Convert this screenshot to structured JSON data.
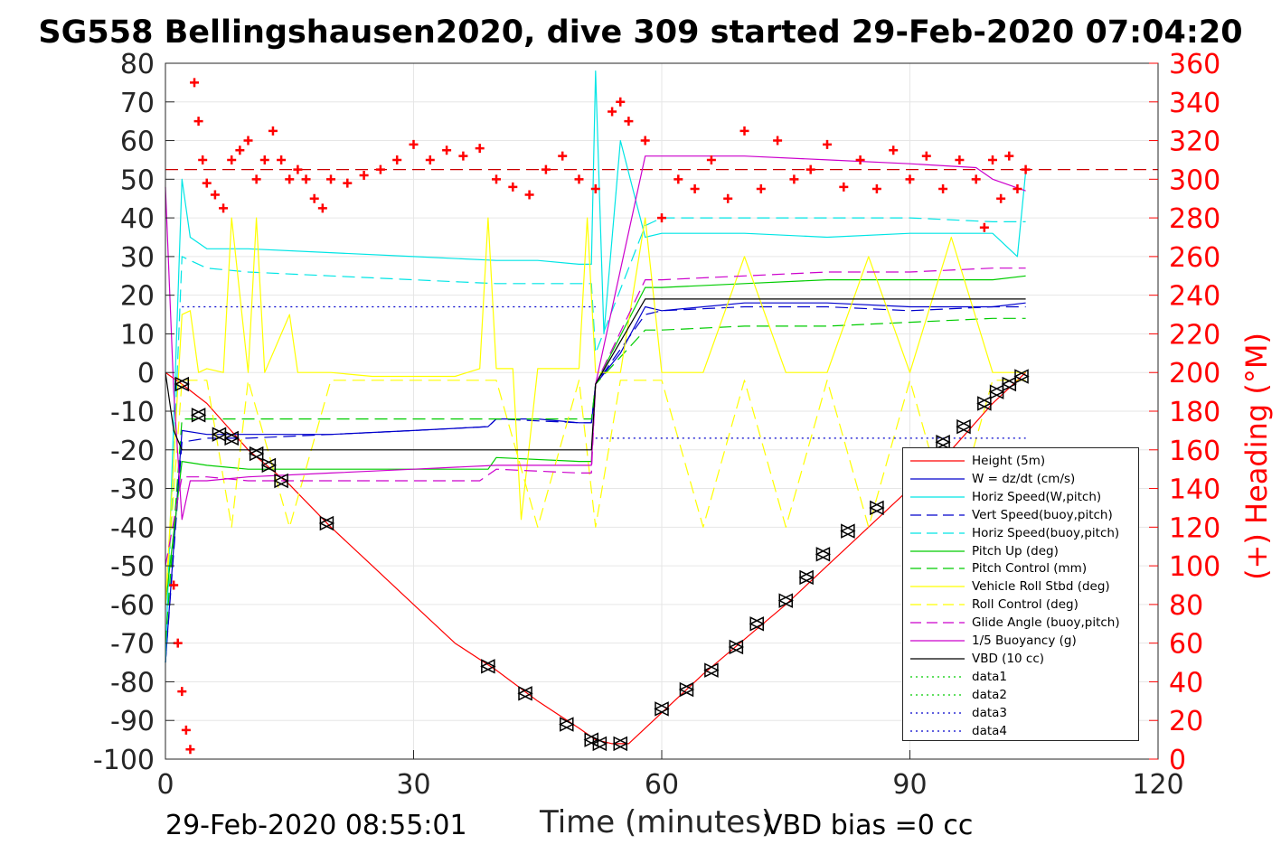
{
  "title": "SG558 Bellingshausen2020, dive 309 started 29-Feb-2020 07:04:20",
  "footer_left": "29-Feb-2020 08:55:01",
  "footer_right": "VBD bias =0 cc",
  "chart_data": {
    "type": "line",
    "title": "SG558 Bellingshausen2020, dive 309 started 29-Feb-2020 07:04:20",
    "xlabel": "Time (minutes)",
    "ylabel_left": "",
    "ylabel_right": "(+) Heading (°M)",
    "xlim": [
      0,
      120
    ],
    "ylim_left": [
      -100,
      80
    ],
    "ylim_right": [
      0,
      360
    ],
    "x_ticks": [
      0,
      30,
      60,
      90,
      120
    ],
    "x_tick_labels": [
      "0",
      "30",
      "60",
      "90",
      "120"
    ],
    "y_ticks_left": [
      80,
      70,
      60,
      50,
      40,
      30,
      20,
      10,
      0,
      -10,
      -20,
      -30,
      -40,
      -50,
      -60,
      -70,
      -80,
      -90,
      -100
    ],
    "y_tick_labels_left": [
      "80",
      "70",
      "60",
      "50",
      "40",
      "30",
      "20",
      "10",
      "0",
      "-10",
      "-20",
      "-30",
      "-40",
      "-50",
      "-60",
      "-70",
      "-80",
      "-90",
      "-100"
    ],
    "y_ticks_right": [
      360,
      340,
      320,
      300,
      280,
      260,
      240,
      220,
      200,
      180,
      160,
      140,
      120,
      100,
      80,
      60,
      40,
      20,
      0
    ],
    "y_tick_labels_right": [
      "360",
      "340",
      "320",
      "300",
      "280",
      "260",
      "240",
      "220",
      "200",
      "180",
      "160",
      "140",
      "120",
      "100",
      "80",
      "60",
      "40",
      "20",
      "0"
    ],
    "grid": true,
    "legend_position": "bottom-right",
    "legend": [
      {
        "label": "Height (5m)",
        "color": "#ff0000",
        "style": "solid"
      },
      {
        "label": "W = dz/dt (cm/s)",
        "color": "#0000cc",
        "style": "solid"
      },
      {
        "label": "Horiz Speed(W,pitch)",
        "color": "#00e5e5",
        "style": "solid"
      },
      {
        "label": "Vert Speed(buoy,pitch)",
        "color": "#0000cc",
        "style": "dashed"
      },
      {
        "label": "Horiz Speed(buoy,pitch)",
        "color": "#00e5e5",
        "style": "dashed"
      },
      {
        "label": "Pitch Up (deg)",
        "color": "#00cc00",
        "style": "solid"
      },
      {
        "label": "Pitch Control (mm)",
        "color": "#00cc00",
        "style": "dashed"
      },
      {
        "label": "Vehicle Roll Stbd (deg)",
        "color": "#ffff00",
        "style": "solid"
      },
      {
        "label": "Roll Control (deg)",
        "color": "#ffff00",
        "style": "dashed"
      },
      {
        "label": "Glide Angle (buoy,pitch)",
        "color": "#cc00cc",
        "style": "dashed"
      },
      {
        "label": "1/5 Buoyancy (g)",
        "color": "#cc00cc",
        "style": "solid"
      },
      {
        "label": "VBD (10 cc)",
        "color": "#000000",
        "style": "solid"
      },
      {
        "label": "data1",
        "color": "#00cc00",
        "style": "dotted"
      },
      {
        "label": "data2",
        "color": "#00cc00",
        "style": "dotted"
      },
      {
        "label": "data3",
        "color": "#0000cc",
        "style": "dotted"
      },
      {
        "label": "data4",
        "color": "#0000cc",
        "style": "dotted"
      }
    ],
    "series": [
      {
        "name": "Height (5m)",
        "axis": "left",
        "color": "#ff0000",
        "style": "solid",
        "x": [
          0,
          2,
          5,
          10,
          15,
          20,
          25,
          30,
          35,
          40,
          45,
          50,
          52,
          54,
          56,
          58,
          60,
          65,
          70,
          75,
          80,
          85,
          90,
          95,
          100,
          104
        ],
        "y": [
          0,
          -3,
          -8,
          -20,
          -29,
          -40,
          -50,
          -60,
          -70,
          -77,
          -85,
          -92,
          -95,
          -96,
          -96,
          -92,
          -88,
          -78,
          -69,
          -60,
          -50,
          -40,
          -30,
          -20,
          -8,
          0
        ]
      },
      {
        "name": "W = dz/dt (cm/s)",
        "axis": "left",
        "color": "#0000cc",
        "style": "solid",
        "x": [
          0,
          2,
          5,
          10,
          20,
          30,
          39,
          40,
          45,
          50,
          51.5,
          52,
          55,
          58,
          60,
          70,
          80,
          90,
          100,
          104
        ],
        "y": [
          -75,
          -15,
          -16,
          -16,
          -16,
          -15,
          -14,
          -12,
          -12,
          -13,
          -13,
          -3,
          5,
          17,
          16,
          18,
          18,
          17,
          17,
          18
        ]
      },
      {
        "name": "Horiz Speed(W,pitch)",
        "axis": "left",
        "color": "#00e5e5",
        "style": "solid",
        "x": [
          0,
          2,
          3,
          5,
          10,
          20,
          30,
          40,
          45,
          50,
          51.5,
          52,
          53,
          55,
          58,
          60,
          70,
          80,
          90,
          100,
          103,
          104
        ],
        "y": [
          -75,
          50,
          35,
          32,
          32,
          31,
          30,
          29,
          29,
          28,
          28,
          78,
          10,
          60,
          35,
          36,
          36,
          35,
          36,
          36,
          30,
          52
        ]
      },
      {
        "name": "Vert Speed(buoy,pitch)",
        "axis": "left",
        "color": "#0000cc",
        "style": "dashed",
        "x": [
          0,
          2,
          5,
          10,
          20,
          30,
          39,
          40,
          50,
          51.5,
          52,
          58,
          60,
          70,
          80,
          90,
          100,
          104
        ],
        "y": [
          -75,
          -18,
          -17,
          -17,
          -16,
          -15,
          -14,
          -12,
          -13,
          -13,
          -3,
          15,
          16,
          17,
          17,
          16,
          17,
          17
        ]
      },
      {
        "name": "Horiz Speed(buoy,pitch)",
        "axis": "left",
        "color": "#00e5e5",
        "style": "dashed",
        "x": [
          0,
          2,
          5,
          10,
          20,
          30,
          40,
          50,
          51.5,
          52,
          58,
          60,
          70,
          80,
          90,
          100,
          104
        ],
        "y": [
          -75,
          30,
          27,
          26,
          25,
          24,
          23,
          23,
          23,
          5,
          38,
          40,
          40,
          40,
          40,
          39,
          39
        ]
      },
      {
        "name": "Pitch Up (deg)",
        "axis": "left",
        "color": "#00cc00",
        "style": "solid",
        "x": [
          0,
          2,
          5,
          10,
          20,
          30,
          39,
          40,
          50,
          51.5,
          52,
          58,
          60,
          70,
          80,
          90,
          100,
          104
        ],
        "y": [
          -60,
          -23,
          -24,
          -25,
          -25,
          -25,
          -25,
          -22,
          -23,
          -23,
          -3,
          22,
          22,
          23,
          24,
          24,
          24,
          25
        ]
      },
      {
        "name": "Pitch Control (mm)",
        "axis": "left",
        "color": "#00cc00",
        "style": "dashed",
        "x": [
          0,
          2,
          5,
          10,
          20,
          30,
          40,
          50,
          51.5,
          52,
          58,
          60,
          70,
          80,
          90,
          100,
          104
        ],
        "y": [
          -70,
          -12,
          -12,
          -12,
          -12,
          -12,
          -12,
          -12,
          -12,
          -3,
          11,
          11,
          12,
          12,
          13,
          14,
          14
        ]
      },
      {
        "name": "Vehicle Roll Stbd (deg)",
        "axis": "left",
        "color": "#ffff00",
        "style": "solid",
        "x": [
          0,
          2,
          3,
          4,
          5,
          7,
          8,
          10,
          11,
          12,
          15,
          16,
          20,
          25,
          30,
          35,
          38,
          39,
          40,
          42,
          43,
          45,
          50,
          51,
          52,
          55,
          58,
          60,
          65,
          70,
          75,
          80,
          85,
          90,
          95,
          100,
          104
        ],
        "y": [
          -60,
          15,
          16,
          0,
          1,
          0,
          40,
          0,
          40,
          0,
          15,
          0,
          0,
          -1,
          -1,
          -1,
          1,
          40,
          1,
          1,
          -38,
          1,
          1,
          40,
          0,
          0,
          40,
          0,
          0,
          30,
          0,
          0,
          30,
          0,
          35,
          0,
          0
        ]
      },
      {
        "name": "Roll Control (deg)",
        "axis": "left",
        "color": "#ffff00",
        "style": "dashed",
        "x": [
          0,
          2,
          5,
          8,
          10,
          15,
          20,
          25,
          30,
          35,
          40,
          45,
          50,
          52,
          55,
          60,
          65,
          70,
          75,
          80,
          85,
          90,
          95,
          100,
          104
        ],
        "y": [
          -60,
          -2,
          -2,
          -40,
          -2,
          -40,
          -2,
          -2,
          -2,
          -2,
          -2,
          -40,
          -2,
          -40,
          -2,
          -2,
          -40,
          -2,
          -40,
          -2,
          -40,
          -2,
          -40,
          -2,
          -2
        ]
      },
      {
        "name": "Glide Angle (buoy,pitch)",
        "axis": "left",
        "color": "#cc00cc",
        "style": "dashed",
        "x": [
          0,
          2,
          5,
          10,
          20,
          30,
          38,
          40,
          50,
          51.5,
          52,
          58,
          60,
          70,
          80,
          90,
          100,
          104
        ],
        "y": [
          -50,
          -27,
          -27,
          -28,
          -28,
          -28,
          -28,
          -25,
          -26,
          -26,
          -3,
          24,
          24,
          25,
          26,
          26,
          27,
          27
        ]
      },
      {
        "name": "1/5 Buoyancy (g)",
        "axis": "left",
        "color": "#cc00cc",
        "style": "solid",
        "x": [
          0,
          1,
          2,
          3,
          5,
          10,
          20,
          30,
          40,
          50,
          51.5,
          52,
          58,
          60,
          70,
          80,
          90,
          98,
          100,
          104
        ],
        "y": [
          48,
          -5,
          -38,
          -28,
          -28,
          -27,
          -26,
          -25,
          -24,
          -24,
          -24,
          -3,
          56,
          56,
          56,
          55,
          54,
          53,
          50,
          47
        ]
      },
      {
        "name": "VBD (10 cc)",
        "axis": "left",
        "color": "#000000",
        "style": "solid",
        "x": [
          0,
          1,
          2,
          5,
          10,
          20,
          30,
          40,
          50,
          51.5,
          52,
          58,
          60,
          70,
          80,
          90,
          100,
          104
        ],
        "y": [
          0,
          -15,
          -20,
          -20,
          -20,
          -20,
          -20,
          -20,
          -20,
          -20,
          -3,
          19,
          19,
          19,
          19,
          19,
          19,
          19
        ]
      },
      {
        "name": "data1",
        "axis": "left",
        "color": "#0000cc",
        "style": "dotted",
        "x": [
          2,
          52
        ],
        "y": [
          17,
          17
        ]
      },
      {
        "name": "data2",
        "axis": "left",
        "color": "#0000cc",
        "style": "dotted",
        "x": [
          52,
          104
        ],
        "y": [
          -17,
          -17
        ]
      }
    ],
    "heading_series": {
      "name": "Heading",
      "axis": "right",
      "color": "#ff0000",
      "marker": "+",
      "x": [
        1,
        1.5,
        2,
        2.5,
        3,
        3.5,
        4,
        4.5,
        5,
        6,
        7,
        8,
        9,
        10,
        11,
        12,
        13,
        14,
        15,
        16,
        17,
        18,
        19,
        20,
        22,
        24,
        26,
        28,
        30,
        32,
        34,
        36,
        38,
        40,
        42,
        44,
        46,
        48,
        50,
        52,
        54,
        55,
        56,
        58,
        60,
        62,
        64,
        66,
        68,
        70,
        72,
        74,
        76,
        78,
        80,
        82,
        84,
        86,
        88,
        90,
        92,
        94,
        96,
        98,
        99,
        100,
        101,
        102,
        103,
        104
      ],
      "y": [
        90,
        60,
        35,
        15,
        5,
        350,
        330,
        310,
        298,
        292,
        285,
        310,
        315,
        320,
        300,
        310,
        325,
        310,
        300,
        305,
        300,
        290,
        285,
        300,
        298,
        302,
        305,
        310,
        318,
        310,
        315,
        312,
        316,
        300,
        296,
        292,
        305,
        312,
        300,
        295,
        335,
        340,
        330,
        320,
        280,
        300,
        295,
        310,
        290,
        325,
        295,
        320,
        300,
        305,
        318,
        296,
        310,
        295,
        315,
        300,
        312,
        295,
        310,
        300,
        275,
        310,
        290,
        312,
        295,
        305
      ]
    },
    "reference_lines": [
      {
        "axis": "right",
        "value": 305,
        "color": "#cc0000",
        "style": "dashed"
      }
    ],
    "depth_markers": {
      "color": "#000000",
      "x": [
        2,
        4,
        6.5,
        8,
        11,
        12.5,
        14,
        19.5,
        39,
        43.5,
        48.5,
        51.5,
        52.5,
        55,
        60,
        63,
        66,
        69,
        71.5,
        75,
        77.5,
        79.5,
        82.5,
        86,
        90,
        94,
        96.5,
        99,
        100.5,
        102,
        103.5
      ],
      "y": [
        -3,
        -11,
        -16,
        -17,
        -21,
        -24,
        -28,
        -39,
        -76,
        -83,
        -91,
        -95,
        -96,
        -96,
        -87,
        -82,
        -77,
        -71,
        -65,
        -59,
        -53,
        -47,
        -41,
        -35,
        -28,
        -18,
        -14,
        -8,
        -5,
        -3,
        -1
      ]
    }
  }
}
